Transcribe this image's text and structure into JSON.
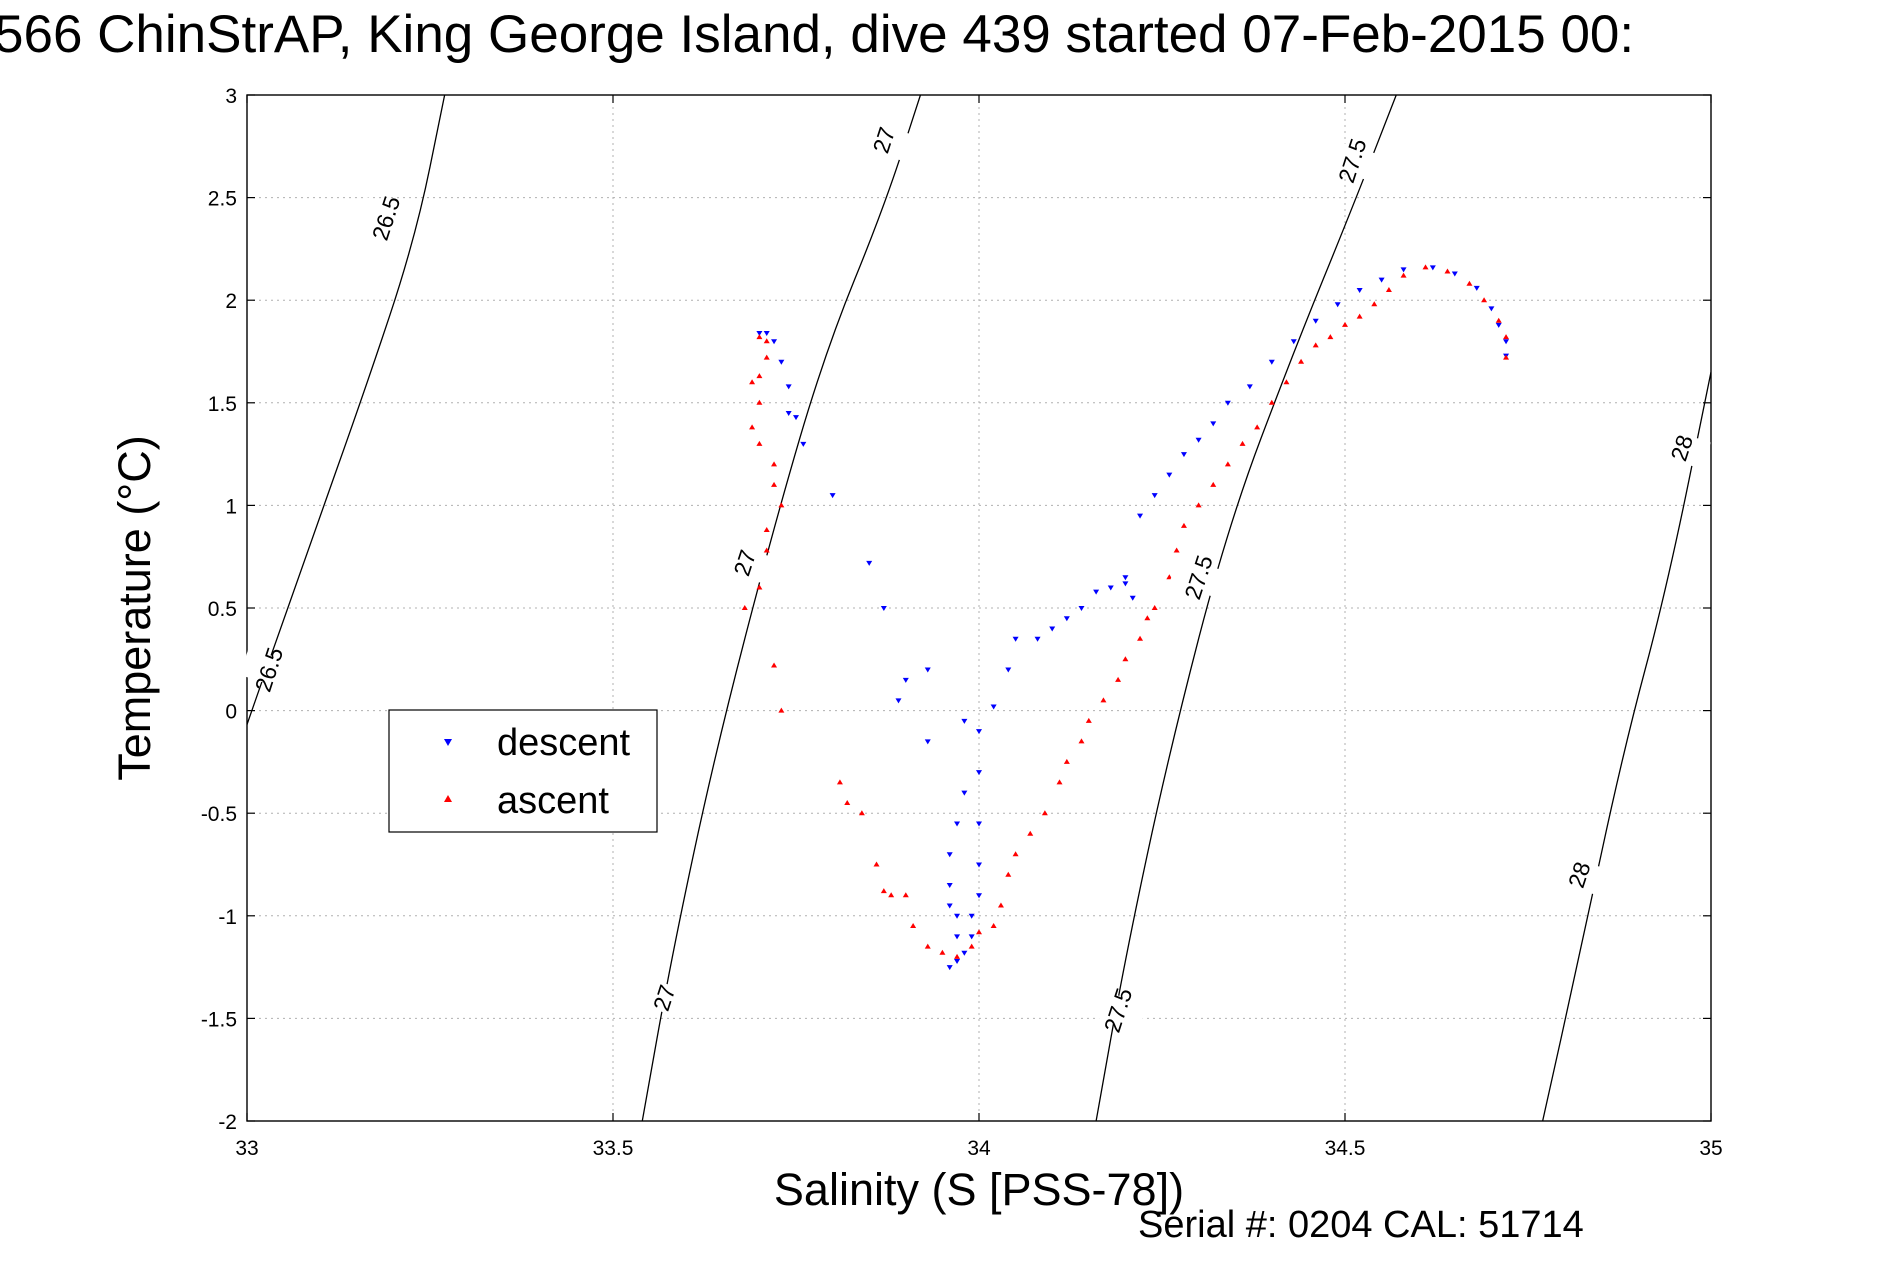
{
  "title": "566 ChinStrAP, King George Island, dive 439 started 07-Feb-2015 00:",
  "footer": "Serial #: 0204  CAL: 51714",
  "colors": {
    "descent": "#0000ff",
    "ascent": "#ff0000",
    "axes": "#000000",
    "grid": "#b0b0b0"
  },
  "chart_data": {
    "type": "scatter",
    "xlabel": "Salinity (S [PSS-78])",
    "ylabel": "Temperature (°C)",
    "xlim": [
      33,
      35
    ],
    "ylim": [
      -2,
      3
    ],
    "xticks": [
      33,
      33.5,
      34,
      34.5,
      35
    ],
    "xtick_labels": [
      "33",
      "33.5",
      "34",
      "34.5",
      "35"
    ],
    "yticks": [
      3,
      2.5,
      2,
      1.5,
      1,
      0.5,
      0,
      -0.5,
      -1,
      -1.5,
      -2
    ],
    "ytick_labels": [
      "3",
      "2.5",
      "2",
      "1.5",
      "1",
      "0.5",
      "0",
      "-0.5",
      "-1",
      "-1.5",
      "-2"
    ],
    "grid": true,
    "legend_position": "center-left",
    "density_contours": [
      {
        "label": "26.5",
        "points": [
          [
            32.99,
            -0.17
          ],
          [
            33.08,
            0.75
          ],
          [
            33.16,
            1.55
          ],
          [
            33.23,
            2.3
          ],
          [
            33.27,
            3.0
          ]
        ]
      },
      {
        "label": "27",
        "points": [
          [
            33.54,
            -2.0
          ],
          [
            33.58,
            -1.2
          ],
          [
            33.64,
            -0.2
          ],
          [
            33.72,
            0.9
          ],
          [
            33.79,
            1.75
          ],
          [
            33.87,
            2.45
          ],
          [
            33.92,
            3.0
          ]
        ]
      },
      {
        "label": "27.5",
        "points": [
          [
            34.16,
            -2.0
          ],
          [
            34.2,
            -1.2
          ],
          [
            34.26,
            -0.2
          ],
          [
            34.34,
            0.9
          ],
          [
            34.43,
            1.75
          ],
          [
            34.51,
            2.45
          ],
          [
            34.57,
            3.0
          ]
        ]
      },
      {
        "label": "28",
        "points": [
          [
            34.77,
            -2.0
          ],
          [
            34.82,
            -1.2
          ],
          [
            34.88,
            -0.2
          ],
          [
            34.94,
            0.6
          ],
          [
            35.0,
            1.65
          ]
        ]
      }
    ],
    "contour_labels": [
      {
        "text": "26.5",
        "x": 33.19,
        "y": 2.4
      },
      {
        "text": "26.5",
        "x": 33.03,
        "y": 0.2
      },
      {
        "text": "27",
        "x": 33.87,
        "y": 2.78
      },
      {
        "text": "27",
        "x": 33.68,
        "y": 0.72
      },
      {
        "text": "27",
        "x": 33.57,
        "y": -1.4
      },
      {
        "text": "27.5",
        "x": 34.51,
        "y": 2.68
      },
      {
        "text": "27.5",
        "x": 34.3,
        "y": 0.65
      },
      {
        "text": "27.5",
        "x": 34.19,
        "y": -1.46
      },
      {
        "text": "28",
        "x": 34.96,
        "y": 1.28
      },
      {
        "text": "28",
        "x": 34.82,
        "y": -0.8
      }
    ],
    "series": [
      {
        "name": "descent",
        "marker": "triangle-down",
        "points": [
          [
            33.7,
            1.84
          ],
          [
            33.71,
            1.84
          ],
          [
            33.72,
            1.8
          ],
          [
            33.73,
            1.7
          ],
          [
            33.74,
            1.58
          ],
          [
            33.74,
            1.45
          ],
          [
            33.75,
            1.43
          ],
          [
            33.76,
            1.3
          ],
          [
            33.8,
            1.05
          ],
          [
            33.85,
            0.72
          ],
          [
            33.87,
            0.5
          ],
          [
            33.89,
            0.05
          ],
          [
            33.9,
            0.15
          ],
          [
            33.93,
            0.2
          ],
          [
            33.93,
            -0.15
          ],
          [
            33.98,
            -0.05
          ],
          [
            33.98,
            -0.4
          ],
          [
            33.97,
            -0.55
          ],
          [
            33.96,
            -0.7
          ],
          [
            33.96,
            -0.85
          ],
          [
            33.96,
            -0.95
          ],
          [
            33.97,
            -1.0
          ],
          [
            33.97,
            -1.1
          ],
          [
            33.96,
            -1.25
          ],
          [
            33.97,
            -1.22
          ],
          [
            33.98,
            -1.18
          ],
          [
            33.99,
            -1.1
          ],
          [
            33.99,
            -1.0
          ],
          [
            34.0,
            -0.9
          ],
          [
            34.0,
            -0.75
          ],
          [
            34.0,
            -0.55
          ],
          [
            34.0,
            -0.3
          ],
          [
            34.0,
            -0.1
          ],
          [
            34.02,
            0.02
          ],
          [
            34.04,
            0.2
          ],
          [
            34.05,
            0.35
          ],
          [
            34.08,
            0.35
          ],
          [
            34.1,
            0.4
          ],
          [
            34.12,
            0.45
          ],
          [
            34.14,
            0.5
          ],
          [
            34.16,
            0.58
          ],
          [
            34.18,
            0.6
          ],
          [
            34.2,
            0.65
          ],
          [
            34.2,
            0.62
          ],
          [
            34.21,
            0.55
          ],
          [
            34.22,
            0.95
          ],
          [
            34.24,
            1.05
          ],
          [
            34.26,
            1.15
          ],
          [
            34.28,
            1.25
          ],
          [
            34.3,
            1.32
          ],
          [
            34.32,
            1.4
          ],
          [
            34.34,
            1.5
          ],
          [
            34.37,
            1.58
          ],
          [
            34.4,
            1.7
          ],
          [
            34.43,
            1.8
          ],
          [
            34.46,
            1.9
          ],
          [
            34.49,
            1.98
          ],
          [
            34.52,
            2.05
          ],
          [
            34.55,
            2.1
          ],
          [
            34.58,
            2.15
          ],
          [
            34.62,
            2.16
          ],
          [
            34.65,
            2.13
          ],
          [
            34.68,
            2.06
          ],
          [
            34.7,
            1.96
          ],
          [
            34.71,
            1.88
          ],
          [
            34.72,
            1.8
          ],
          [
            34.72,
            1.73
          ]
        ]
      },
      {
        "name": "ascent",
        "marker": "triangle-up",
        "points": [
          [
            33.7,
            1.82
          ],
          [
            33.71,
            1.8
          ],
          [
            33.71,
            1.72
          ],
          [
            33.7,
            1.63
          ],
          [
            33.69,
            1.6
          ],
          [
            33.7,
            1.5
          ],
          [
            33.69,
            1.38
          ],
          [
            33.7,
            1.3
          ],
          [
            33.72,
            1.2
          ],
          [
            33.72,
            1.1
          ],
          [
            33.73,
            1.0
          ],
          [
            33.71,
            0.88
          ],
          [
            33.71,
            0.78
          ],
          [
            33.69,
            0.66
          ],
          [
            33.7,
            0.6
          ],
          [
            33.68,
            0.5
          ],
          [
            33.72,
            0.22
          ],
          [
            33.73,
            0.0
          ],
          [
            33.81,
            -0.35
          ],
          [
            33.82,
            -0.45
          ],
          [
            33.84,
            -0.5
          ],
          [
            33.86,
            -0.75
          ],
          [
            33.87,
            -0.88
          ],
          [
            33.88,
            -0.9
          ],
          [
            33.9,
            -0.9
          ],
          [
            33.91,
            -1.05
          ],
          [
            33.93,
            -1.15
          ],
          [
            33.95,
            -1.18
          ],
          [
            33.97,
            -1.2
          ],
          [
            33.99,
            -1.15
          ],
          [
            34.0,
            -1.08
          ],
          [
            34.02,
            -1.05
          ],
          [
            34.03,
            -0.95
          ],
          [
            34.04,
            -0.8
          ],
          [
            34.05,
            -0.7
          ],
          [
            34.07,
            -0.6
          ],
          [
            34.09,
            -0.5
          ],
          [
            34.11,
            -0.35
          ],
          [
            34.12,
            -0.25
          ],
          [
            34.14,
            -0.15
          ],
          [
            34.15,
            -0.05
          ],
          [
            34.17,
            0.05
          ],
          [
            34.19,
            0.15
          ],
          [
            34.2,
            0.25
          ],
          [
            34.22,
            0.35
          ],
          [
            34.23,
            0.45
          ],
          [
            34.24,
            0.5
          ],
          [
            34.26,
            0.65
          ],
          [
            34.27,
            0.78
          ],
          [
            34.28,
            0.9
          ],
          [
            34.3,
            1.0
          ],
          [
            34.32,
            1.1
          ],
          [
            34.34,
            1.2
          ],
          [
            34.36,
            1.3
          ],
          [
            34.38,
            1.38
          ],
          [
            34.4,
            1.5
          ],
          [
            34.42,
            1.6
          ],
          [
            34.44,
            1.7
          ],
          [
            34.46,
            1.78
          ],
          [
            34.48,
            1.82
          ],
          [
            34.5,
            1.88
          ],
          [
            34.52,
            1.92
          ],
          [
            34.54,
            1.98
          ],
          [
            34.56,
            2.05
          ],
          [
            34.58,
            2.12
          ],
          [
            34.61,
            2.16
          ],
          [
            34.64,
            2.14
          ],
          [
            34.67,
            2.08
          ],
          [
            34.69,
            2.0
          ],
          [
            34.71,
            1.9
          ],
          [
            34.72,
            1.82
          ],
          [
            34.72,
            1.72
          ]
        ]
      }
    ]
  }
}
